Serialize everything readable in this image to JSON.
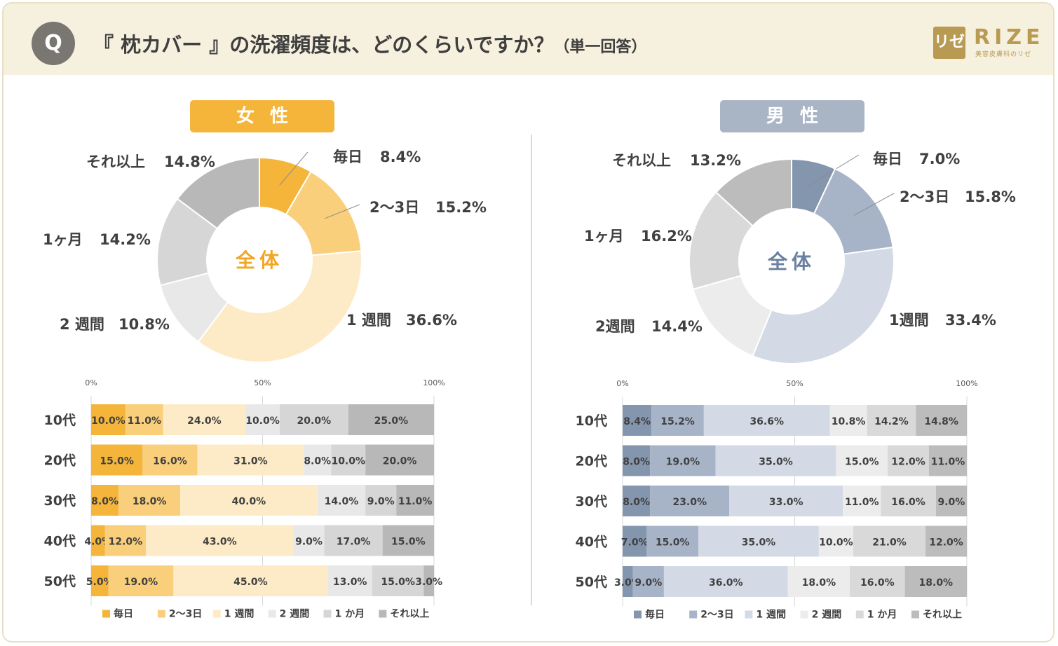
{
  "header": {
    "q_badge": "Q",
    "title_main": "『 枕カバー 』の洗濯頻度は、どのくらいですか？",
    "title_note": "（単一回答）",
    "logo_mark": "リゼ",
    "logo_text": "RIZE",
    "logo_sub": "美容皮膚科のリゼ"
  },
  "colors": {
    "female": [
      "#f4b53a",
      "#f9cf7c",
      "#fdebc7",
      "#e8e8e8",
      "#d6d6d6",
      "#b8b8b8"
    ],
    "male": [
      "#8495ae",
      "#a7b4c8",
      "#d3dae6",
      "#ececec",
      "#d9d9d9",
      "#bcbcbc"
    ],
    "female_badge": "#f4b53a",
    "male_badge": "#a9b4c5",
    "female_center": "#f2a623",
    "male_center": "#6a80a0"
  },
  "female": {
    "badge": "女性",
    "center_label": "全体"
  },
  "male": {
    "badge": "男性",
    "center_label": "全体"
  },
  "chart_data": [
    {
      "type": "pie",
      "categories": [
        "毎日",
        "2～3日",
        "1週間",
        "2週間",
        "1ヶ月",
        "それ以上"
      ],
      "display_labels": [
        "毎日",
        "2～3日",
        "1 週間",
        "2 週間",
        "1ヶ月",
        "それ以上"
      ],
      "values": [
        8.4,
        15.2,
        36.6,
        10.8,
        14.2,
        14.8
      ],
      "value_labels": [
        "8.4%",
        "15.2%",
        "36.6%",
        "10.8%",
        "14.2%",
        "14.8%"
      ]
    },
    {
      "type": "bar",
      "orientation": "horizontal-stacked",
      "categories": [
        "10代",
        "20代",
        "30代",
        "40代",
        "50代"
      ],
      "legend_labels": [
        "毎日",
        "2～3日",
        "1 週間",
        "2 週間",
        "1 か月",
        "それ以上"
      ],
      "axis_ticks": [
        "0%",
        "50%",
        "100%"
      ],
      "xlim": [
        0,
        100
      ],
      "series": [
        {
          "name": "毎日",
          "values": [
            10.0,
            15.0,
            8.0,
            4.0,
            5.0
          ]
        },
        {
          "name": "2～3日",
          "values": [
            11.0,
            16.0,
            18.0,
            12.0,
            19.0
          ]
        },
        {
          "name": "1 週間",
          "values": [
            24.0,
            31.0,
            40.0,
            43.0,
            45.0
          ]
        },
        {
          "name": "2 週間",
          "values": [
            10.0,
            8.0,
            14.0,
            9.0,
            13.0
          ]
        },
        {
          "name": "1 か月",
          "values": [
            20.0,
            10.0,
            9.0,
            17.0,
            15.0
          ]
        },
        {
          "name": "それ以上",
          "values": [
            25.0,
            20.0,
            11.0,
            15.0,
            3.0
          ]
        }
      ]
    },
    {
      "type": "pie",
      "categories": [
        "毎日",
        "2～3日",
        "1週間",
        "2週間",
        "1ヶ月",
        "それ以上"
      ],
      "display_labels": [
        "毎日",
        "2～3日",
        "1週間",
        "2週間",
        "1ヶ月",
        "それ以上"
      ],
      "values": [
        7.0,
        15.8,
        33.4,
        14.4,
        16.2,
        13.2
      ],
      "value_labels": [
        "7.0%",
        "15.8%",
        "33.4%",
        "14.4%",
        "16.2%",
        "13.2%"
      ]
    },
    {
      "type": "bar",
      "orientation": "horizontal-stacked",
      "categories": [
        "10代",
        "20代",
        "30代",
        "40代",
        "50代"
      ],
      "legend_labels": [
        "毎日",
        "2～3日",
        "1 週間",
        "2 週間",
        "1 か月",
        "それ以上"
      ],
      "axis_ticks": [
        "0%",
        "50%",
        "100%"
      ],
      "xlim": [
        0,
        100
      ],
      "series": [
        {
          "name": "毎日",
          "values": [
            8.4,
            8.0,
            8.0,
            7.0,
            3.0
          ]
        },
        {
          "name": "2～3日",
          "values": [
            15.2,
            19.0,
            23.0,
            15.0,
            9.0
          ]
        },
        {
          "name": "1 週間",
          "values": [
            36.6,
            35.0,
            33.0,
            35.0,
            36.0
          ]
        },
        {
          "name": "2 週間",
          "values": [
            10.8,
            15.0,
            11.0,
            10.0,
            18.0
          ]
        },
        {
          "name": "1 か月",
          "values": [
            14.2,
            12.0,
            16.0,
            21.0,
            16.0
          ]
        },
        {
          "name": "それ以上",
          "values": [
            14.8,
            11.0,
            9.0,
            12.0,
            18.0
          ]
        }
      ]
    }
  ]
}
